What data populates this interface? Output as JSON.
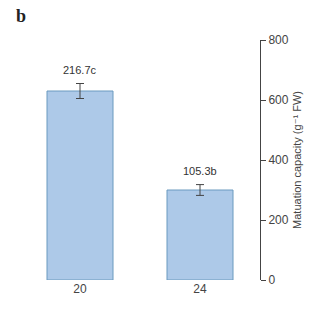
{
  "chart_data": {
    "type": "bar",
    "title": "b",
    "categories": [
      "20",
      "24"
    ],
    "values": [
      630,
      300
    ],
    "errors": [
      25,
      18
    ],
    "color": "#adc9e8",
    "annotations": [
      "216.7c",
      "105.3b"
    ],
    "ylabel": "Matuation capacity (g⁻¹ FW)",
    "ylim": [
      0,
      800
    ],
    "yticks": [
      0,
      200,
      400,
      600,
      800
    ],
    "grid": false
  }
}
